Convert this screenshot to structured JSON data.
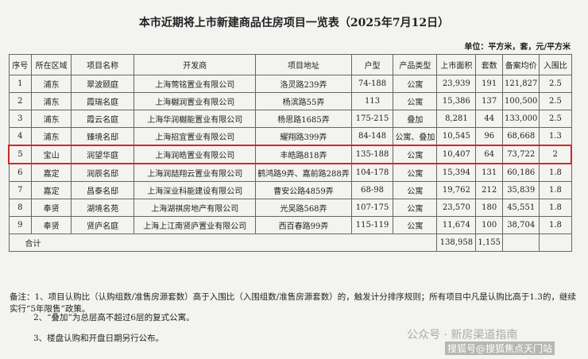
{
  "title": "本市近期将上市新建商品住房项目一览表（2025年7月12日）",
  "unit": "单位：平方米，套，元/平方米",
  "table": {
    "headers": [
      "序号",
      "所在区域",
      "项目名称",
      "开发商",
      "项目地址",
      "户型",
      "产品类型",
      "上市面积",
      "套数",
      "备案均价",
      "入围比"
    ],
    "rows": [
      [
        "1",
        "浦东",
        "翠波颐庭",
        "上海莺铭置业有限公司",
        "洛灵路239弄",
        "74-188",
        "公寓",
        "23,939",
        "191",
        "121,827",
        "2.5"
      ],
      [
        "2",
        "浦东",
        "霞瑞名庭",
        "上海樾润置业有限公司",
        "杨滨路55弄",
        "113",
        "公寓",
        "15,386",
        "137",
        "100,500",
        "2.5"
      ],
      [
        "3",
        "浦东",
        "霞云名庭",
        "上海华润樾能置业有限公司",
        "杨思路1685弄",
        "175-215",
        "叠加",
        "8,281",
        "44",
        "133,000",
        "2.5"
      ],
      [
        "4",
        "浦东",
        "臻境名邸",
        "上海招宜置业有限公司",
        "耀翔路399弄",
        "84-148",
        "公寓、叠加",
        "10,545",
        "96",
        "68,668",
        "1.3"
      ],
      [
        "5",
        "宝山",
        "润望华庭",
        "上海润皓置业有限公司",
        "丰皓路818弄",
        "135-188",
        "公寓",
        "10,407",
        "64",
        "73,722",
        "2"
      ],
      [
        "6",
        "嘉定",
        "润辰名邸",
        "上海润喆翔云置业有限公司",
        "鹤鸿路9弄、嘉前路288弄",
        "104-178",
        "公寓",
        "15,394",
        "131",
        "60,186",
        "1.8"
      ],
      [
        "7",
        "嘉定",
        "昌泰名邸",
        "上海深业科能建设有限公司",
        "曹安公路4859弄",
        "68-98",
        "公寓",
        "19,762",
        "212",
        "35,839",
        "1.8"
      ],
      [
        "8",
        "奉贤",
        "湖境名苑",
        "上海湖祺房地产有限公司",
        "光吴路568弄",
        "107-175",
        "公寓",
        "23,570",
        "180",
        "45,551",
        "1.8"
      ],
      [
        "9",
        "奉贤",
        "贤庐名庭",
        "上海上江南贤庐置业有限公司",
        "西百春路99弄",
        "115-119",
        "公寓",
        "11,674",
        "100",
        "38,704",
        "1.8"
      ]
    ],
    "total": {
      "label": "合计",
      "area": "138,958",
      "units": "1,155"
    }
  },
  "notes": [
    "备注：1、项目认购比（认购组数/准售房源套数）高于入围比（入围组数/准售房源套数）的，触发计分排序规则；所有项目中凡是认购比高于1.3的，继续实行“5年限售”政策。",
    "2、“叠加”为总层高不超过6层的复式公寓。",
    "3、楼盘认购和开盘日期另行公布。"
  ],
  "watermarks": [
    "公众号 · 新房渠道指南",
    "搜狐号@搜狐焦点天门站"
  ]
}
